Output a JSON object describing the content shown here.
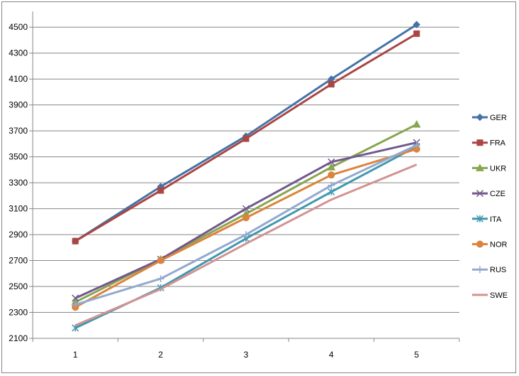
{
  "chart_data": {
    "type": "line",
    "title": "",
    "xlabel": "",
    "ylabel": "",
    "x": [
      1,
      2,
      3,
      4,
      5
    ],
    "ylim": [
      2100,
      4600
    ],
    "yticks": [
      2100,
      2300,
      2500,
      2700,
      2900,
      3100,
      3300,
      3500,
      3700,
      3900,
      4100,
      4300,
      4500
    ],
    "grid": "horizontal",
    "legend": "right",
    "series": [
      {
        "name": "GER",
        "color": "#4572A7",
        "marker": "diamond",
        "values": [
          2850,
          3270,
          3660,
          4100,
          4520
        ]
      },
      {
        "name": "FRA",
        "color": "#AA4643",
        "marker": "square",
        "values": [
          2850,
          3240,
          3640,
          4060,
          4450
        ]
      },
      {
        "name": "UKR",
        "color": "#89A54E",
        "marker": "triangle",
        "values": [
          2380,
          2710,
          3060,
          3420,
          3750
        ]
      },
      {
        "name": "CZE",
        "color": "#71588F",
        "marker": "x",
        "values": [
          2410,
          2710,
          3100,
          3460,
          3610
        ]
      },
      {
        "name": "ITA",
        "color": "#4198AF",
        "marker": "star",
        "values": [
          2180,
          2490,
          2870,
          3230,
          3580
        ]
      },
      {
        "name": "NOR",
        "color": "#DB843D",
        "marker": "circle",
        "values": [
          2340,
          2700,
          3030,
          3360,
          3560
        ]
      },
      {
        "name": "RUS",
        "color": "#93A9CF",
        "marker": "plus",
        "values": [
          2360,
          2560,
          2900,
          3280,
          3590
        ]
      },
      {
        "name": "SWE",
        "color": "#D19392",
        "marker": "none",
        "values": [
          2200,
          2480,
          2830,
          3170,
          3440
        ]
      }
    ]
  }
}
